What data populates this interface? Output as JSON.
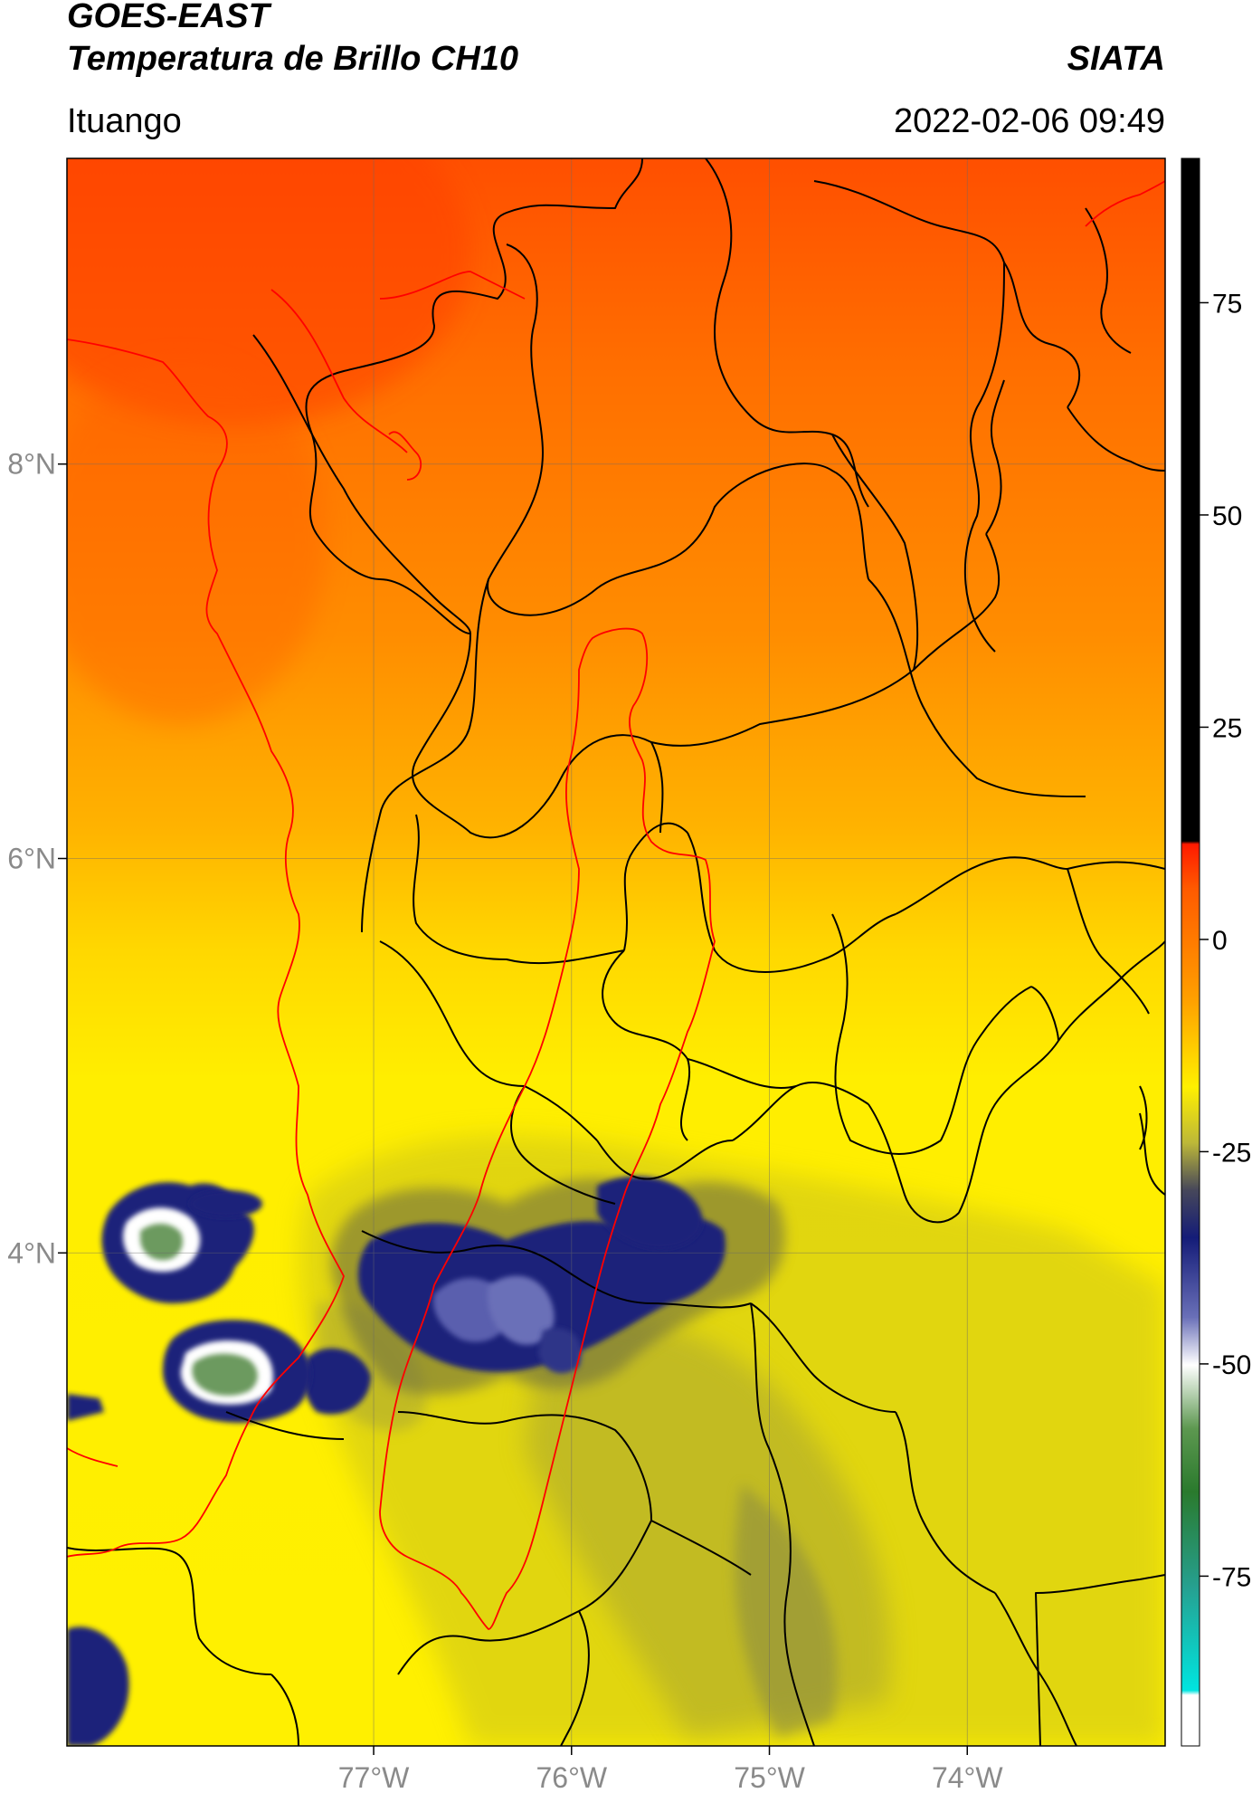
{
  "header": {
    "title_line1": "GOES-EAST",
    "title_line2": "Temperatura de Brillo CH10",
    "agency": "SIATA",
    "location": "Ituango",
    "datetime": "2022-02-06 09:49"
  },
  "map": {
    "lon_range": [
      -78.55,
      -73.0
    ],
    "lat_range": [
      1.5,
      9.55
    ],
    "lon_ticks": [
      {
        "value": -77,
        "label": "77°W"
      },
      {
        "value": -76,
        "label": "76°W"
      },
      {
        "value": -75,
        "label": "75°W"
      },
      {
        "value": -74,
        "label": "74°W"
      }
    ],
    "lat_ticks": [
      {
        "value": 8,
        "label": "8°N"
      },
      {
        "value": 6,
        "label": "6°N"
      },
      {
        "value": 4,
        "label": "4°N"
      }
    ],
    "colors": {
      "warm_top": "#ff4a00",
      "orange": "#ff9200",
      "yellow": "#ffe600",
      "olive": "#b9b336",
      "navy": "#1f237a",
      "border_black": "#000000",
      "border_red": "#ff0000"
    }
  },
  "colorbar": {
    "range": [
      -95,
      92
    ],
    "ticks": [
      {
        "value": 75,
        "label": "75"
      },
      {
        "value": 50,
        "label": "50"
      },
      {
        "value": 25,
        "label": "25"
      },
      {
        "value": 0,
        "label": "0"
      },
      {
        "value": -25,
        "label": "-25"
      },
      {
        "value": -50,
        "label": "-50"
      },
      {
        "value": -75,
        "label": "-75"
      }
    ]
  }
}
